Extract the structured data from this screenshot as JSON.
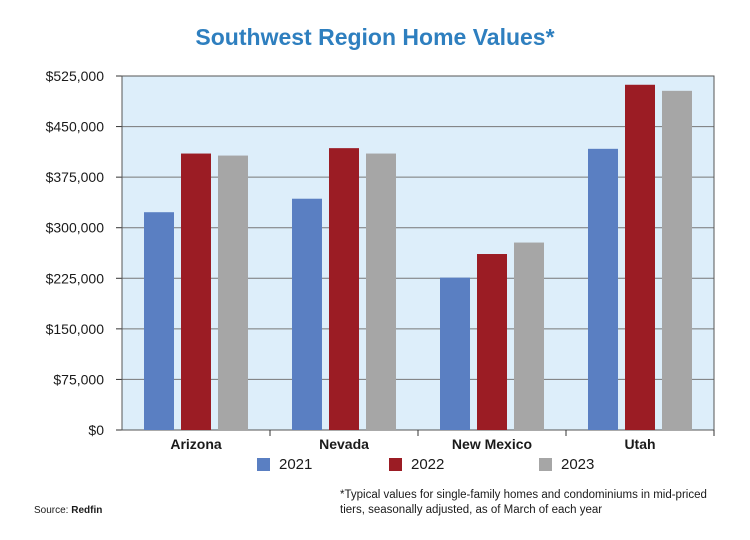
{
  "chart_data": {
    "type": "bar",
    "title": "Southwest Region Home Values*",
    "categories": [
      "Arizona",
      "Nevada",
      "New Mexico",
      "Utah"
    ],
    "series": [
      {
        "name": "2021",
        "color": "#5a7fc2",
        "values": [
          323000,
          343000,
          226000,
          417000
        ]
      },
      {
        "name": "2022",
        "color": "#9b1c24",
        "values": [
          410000,
          418000,
          261000,
          512000
        ]
      },
      {
        "name": "2023",
        "color": "#a6a6a6",
        "values": [
          407000,
          410000,
          278000,
          503000
        ]
      }
    ],
    "yticks": [
      "$0",
      "$75,000",
      "$150,000",
      "$225,000",
      "$300,000",
      "$375,000",
      "$450,000",
      "$525,000"
    ],
    "ylim": [
      0,
      525000
    ],
    "grid": true,
    "legend": "bottom",
    "plot_background": "#ddeefa"
  },
  "source": {
    "label": "Source:",
    "value": "Redfin"
  },
  "footnote": "*Typical values for single-family homes and condominiums in mid-priced tiers, seasonally adjusted, as of March of each year"
}
